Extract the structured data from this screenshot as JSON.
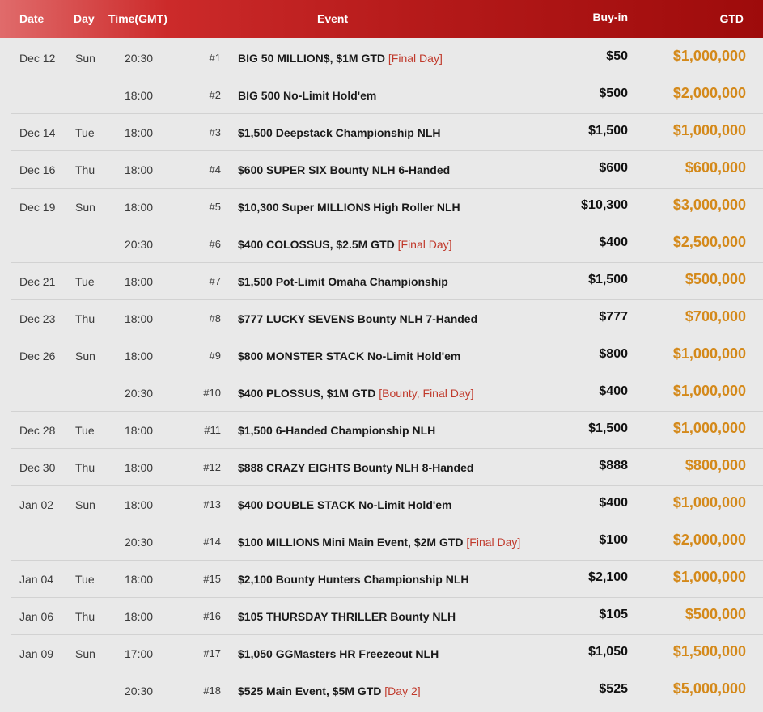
{
  "header": {
    "date": "Date",
    "day": "Day",
    "time": "Time(GMT)",
    "event": "Event",
    "buyin": "Buy-in",
    "gtd": "GTD"
  },
  "rows": [
    {
      "date": "Dec 12",
      "day": "Sun",
      "time": "20:30",
      "num": "#1",
      "event": "BIG 50 MILLION$, $1M GTD",
      "note": "[Final Day]",
      "buyin": "$50",
      "gtd": "$1,000,000"
    },
    {
      "date": "",
      "day": "",
      "time": "18:00",
      "num": "#2",
      "event": "BIG 500 No-Limit Hold'em",
      "note": "",
      "buyin": "$500",
      "gtd": "$2,000,000"
    },
    {
      "date": "Dec 14",
      "day": "Tue",
      "time": "18:00",
      "num": "#3",
      "event": "$1,500 Deepstack Championship NLH",
      "note": "",
      "buyin": "$1,500",
      "gtd": "$1,000,000"
    },
    {
      "date": "Dec 16",
      "day": "Thu",
      "time": "18:00",
      "num": "#4",
      "event": "$600 SUPER SIX Bounty NLH 6-Handed",
      "note": "",
      "buyin": "$600",
      "gtd": "$600,000"
    },
    {
      "date": "Dec 19",
      "day": "Sun",
      "time": "18:00",
      "num": "#5",
      "event": "$10,300 Super MILLION$ High Roller NLH",
      "note": "",
      "buyin": "$10,300",
      "gtd": "$3,000,000"
    },
    {
      "date": "",
      "day": "",
      "time": "20:30",
      "num": "#6",
      "event": "$400 COLOSSUS, $2.5M GTD",
      "note": "[Final Day]",
      "buyin": "$400",
      "gtd": "$2,500,000"
    },
    {
      "date": "Dec 21",
      "day": "Tue",
      "time": "18:00",
      "num": "#7",
      "event": "$1,500 Pot-Limit Omaha Championship",
      "note": "",
      "buyin": "$1,500",
      "gtd": "$500,000"
    },
    {
      "date": "Dec 23",
      "day": "Thu",
      "time": "18:00",
      "num": "#8",
      "event": "$777 LUCKY SEVENS Bounty NLH 7-Handed",
      "note": "",
      "buyin": "$777",
      "gtd": "$700,000"
    },
    {
      "date": "Dec 26",
      "day": "Sun",
      "time": "18:00",
      "num": "#9",
      "event": "$800 MONSTER STACK No-Limit Hold'em",
      "note": "",
      "buyin": "$800",
      "gtd": "$1,000,000"
    },
    {
      "date": "",
      "day": "",
      "time": "20:30",
      "num": "#10",
      "event": "$400 PLOSSUS, $1M GTD",
      "note": "[Bounty, Final Day]",
      "buyin": "$400",
      "gtd": "$1,000,000"
    },
    {
      "date": "Dec 28",
      "day": "Tue",
      "time": "18:00",
      "num": "#11",
      "event": "$1,500 6-Handed Championship NLH",
      "note": "",
      "buyin": "$1,500",
      "gtd": "$1,000,000"
    },
    {
      "date": "Dec 30",
      "day": "Thu",
      "time": "18:00",
      "num": "#12",
      "event": "$888 CRAZY EIGHTS Bounty NLH 8-Handed",
      "note": "",
      "buyin": "$888",
      "gtd": "$800,000"
    },
    {
      "date": "Jan 02",
      "day": "Sun",
      "time": "18:00",
      "num": "#13",
      "event": "$400 DOUBLE STACK No-Limit Hold'em",
      "note": "",
      "buyin": "$400",
      "gtd": "$1,000,000"
    },
    {
      "date": "",
      "day": "",
      "time": "20:30",
      "num": "#14",
      "event": "$100 MILLION$ Mini Main Event, $2M GTD",
      "note": "[Final Day]",
      "buyin": "$100",
      "gtd": "$2,000,000"
    },
    {
      "date": "Jan  04",
      "day": "Tue",
      "time": "18:00",
      "num": "#15",
      "event": "$2,100 Bounty Hunters Championship NLH",
      "note": "",
      "buyin": "$2,100",
      "gtd": "$1,000,000"
    },
    {
      "date": "Jan 06",
      "day": "Thu",
      "time": "18:00",
      "num": "#16",
      "event": "$105 THURSDAY THRILLER Bounty NLH",
      "note": "",
      "buyin": "$105",
      "gtd": "$500,000"
    },
    {
      "date": "Jan 09",
      "day": "Sun",
      "time": "17:00",
      "num": "#17",
      "event": "$1,050 GGMasters HR Freezeout NLH",
      "note": "",
      "buyin": "$1,050",
      "gtd": "$1,500,000"
    },
    {
      "date": "",
      "day": "",
      "time": "20:30",
      "num": "#18",
      "event": "$525 Main Event, $5M GTD",
      "note": "[Day 2]",
      "buyin": "$525",
      "gtd": "$5,000,000"
    }
  ]
}
